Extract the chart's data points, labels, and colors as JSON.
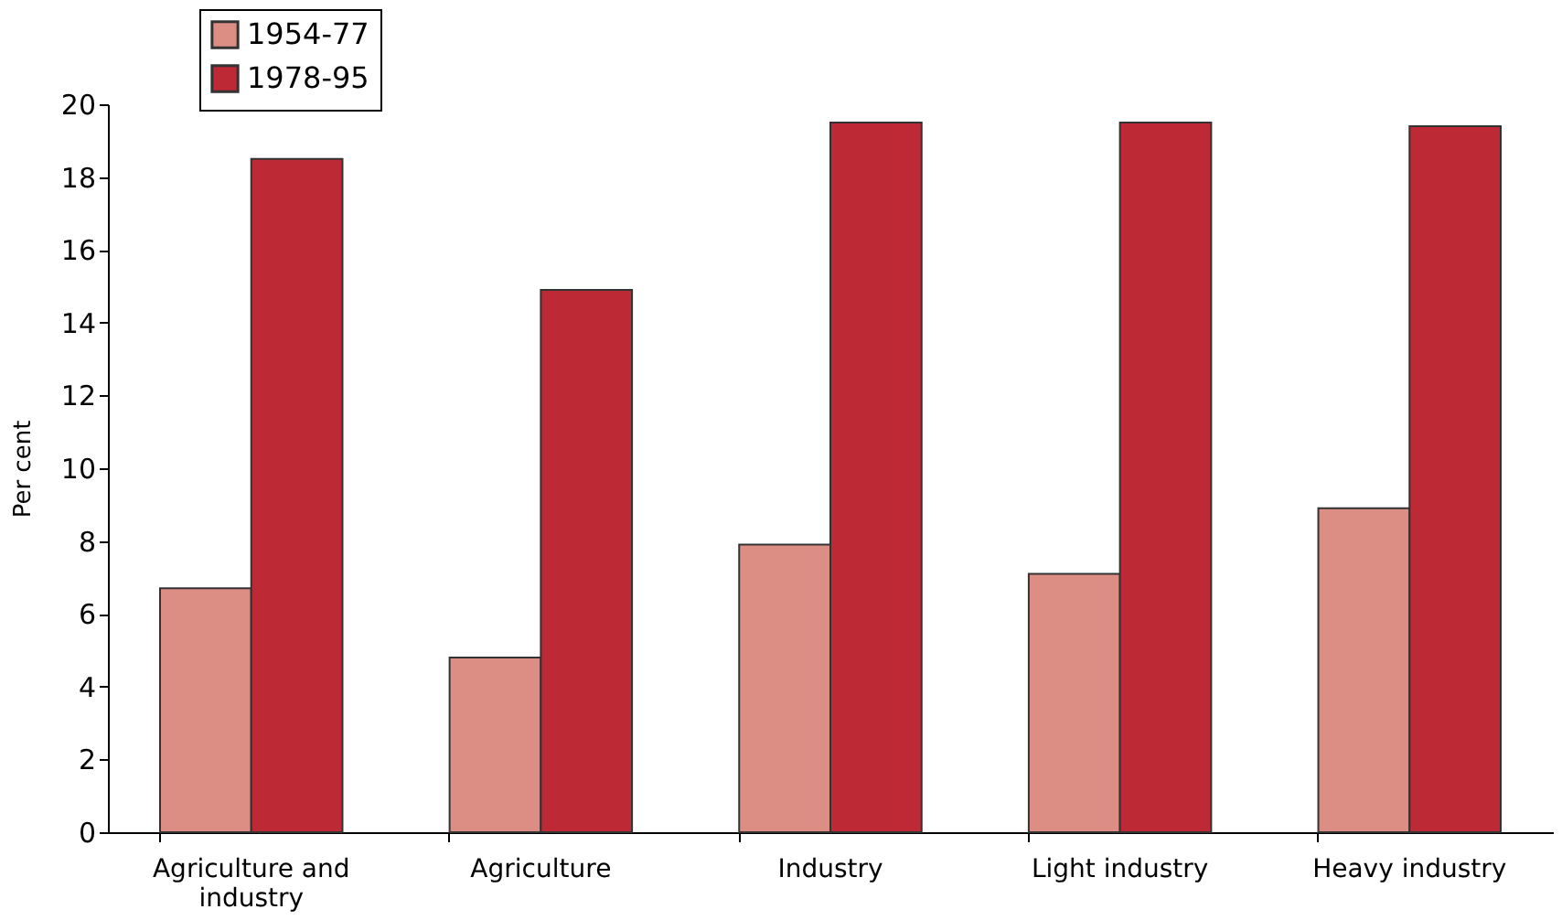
{
  "chart_data": {
    "type": "bar",
    "ylabel": "Per cent",
    "categories": [
      "Agriculture and industry",
      "Agriculture",
      "Industry",
      "Light industry",
      "Heavy industry"
    ],
    "series": [
      {
        "name": "1954-77",
        "color": "#dc8e84",
        "values": [
          6.7,
          4.8,
          7.9,
          7.1,
          8.9
        ]
      },
      {
        "name": "1978-95",
        "color": "#bd2935",
        "values": [
          18.5,
          14.9,
          19.5,
          19.5,
          19.4
        ]
      }
    ],
    "ylim": [
      0,
      20
    ],
    "yticks": [
      0,
      2,
      4,
      6,
      8,
      10,
      12,
      14,
      16,
      18,
      20
    ],
    "grid": false,
    "legend": "top"
  }
}
